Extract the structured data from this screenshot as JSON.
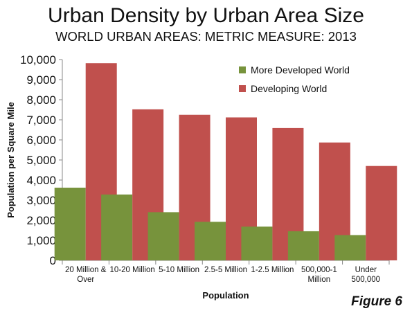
{
  "title": "Urban Density by Urban Area Size",
  "subtitle": "WORLD URBAN AREAS: METRIC MEASURE: 2013",
  "figure_label": "Figure 6",
  "colors": {
    "more_developed": "#77933c",
    "developing": "#c0504d"
  },
  "chart_data": {
    "type": "bar",
    "xlabel": "Population",
    "ylabel": "Population per Square Mile",
    "ylim": [
      0,
      10000
    ],
    "y_ticks": [
      "0",
      "1,000",
      "2,000",
      "3,000",
      "4,000",
      "5,000",
      "6,000",
      "7,000",
      "8,000",
      "9,000",
      "10,000"
    ],
    "categories": [
      [
        "20 Million  &",
        "Over"
      ],
      [
        "10-20 Million"
      ],
      [
        "5-10 Million"
      ],
      [
        "2.5-5 Million"
      ],
      [
        "1-2.5 Million"
      ],
      [
        "500,000-1",
        "Million"
      ],
      [
        "Under",
        "500,000"
      ]
    ],
    "series": [
      {
        "name": "More Developed World",
        "values": [
          3620,
          3280,
          2400,
          1920,
          1680,
          1450,
          1260
        ]
      },
      {
        "name": "Developing World",
        "values": [
          9820,
          7520,
          7250,
          7120,
          6590,
          5870,
          4700
        ]
      }
    ],
    "legend_position": "top-right",
    "grid": false
  }
}
